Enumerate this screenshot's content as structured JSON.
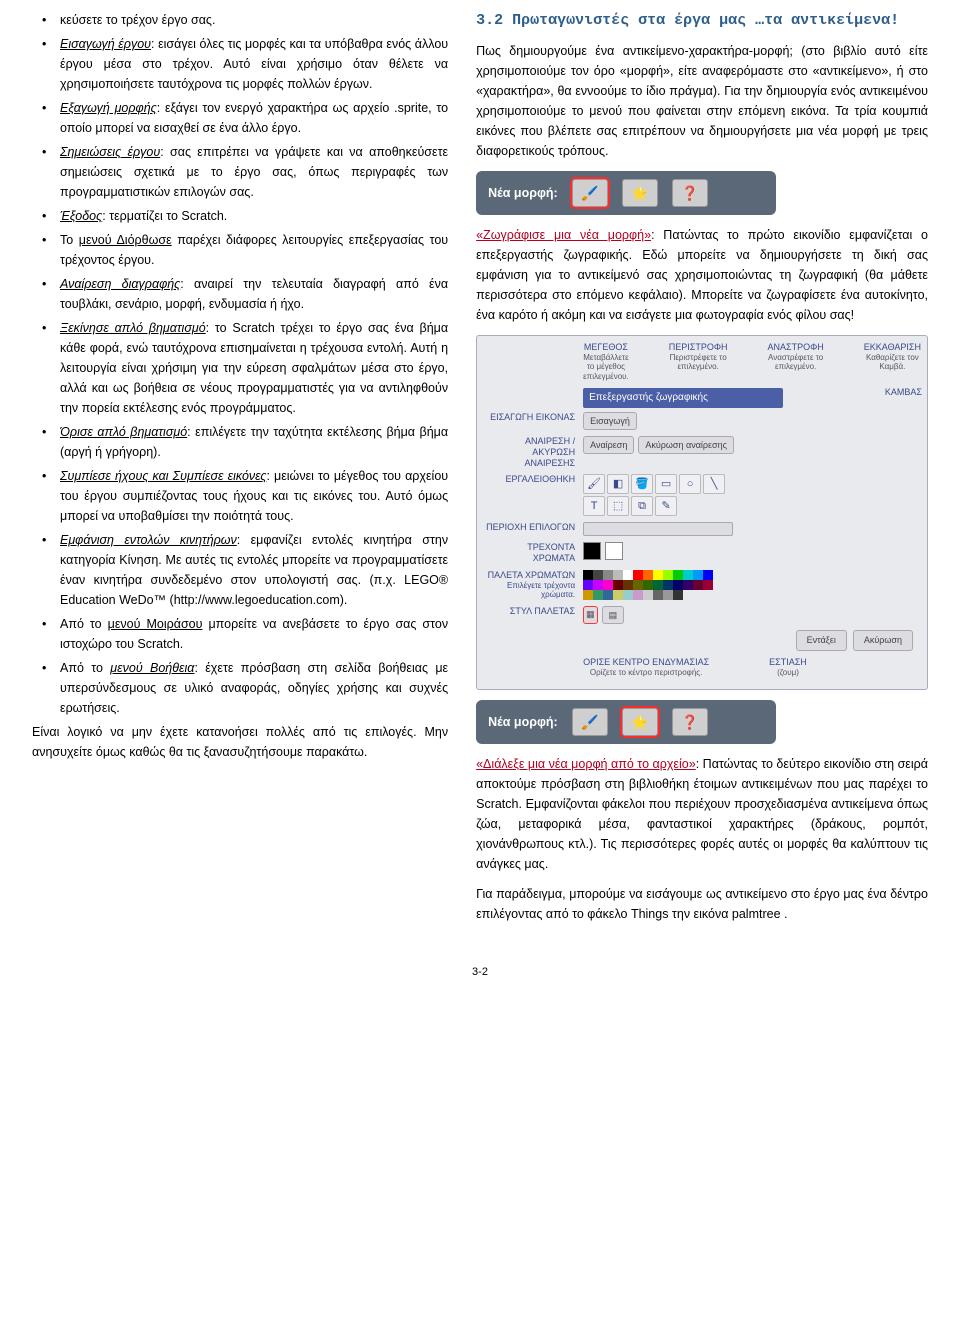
{
  "left": {
    "items": [
      {
        "pre": "",
        "term": "",
        "after": "κεύσετε το τρέχον έργο σας.",
        "term_class": ""
      },
      {
        "pre": "",
        "term": "Εισαγωγή έργου",
        "after": ": εισάγει όλες τις μορφές και τα υπόβαθρα ενός άλλου έργου μέσα στο τρέχον. Αυτό είναι χρήσιμο όταν θέλετε να χρησιμοποιήσετε ταυτόχρονα τις μορφές πολλών έργων.",
        "term_class": "u i"
      },
      {
        "pre": "",
        "term": "Εξαγωγή μορφής",
        "after": ": εξάγει τον ενεργό χαρακτήρα ως αρχείο .sprite, το οποίο μπορεί να εισαχθεί σε ένα άλλο έργο.",
        "term_class": "u i"
      },
      {
        "pre": "",
        "term": "Σημειώσεις έργου",
        "after": ": σας επιτρέπει να γράψετε και να αποθηκεύσετε σημειώσεις σχετικά με το έργο σας, όπως περιγραφές των προγραμματιστικών επιλογών σας.",
        "term_class": "u i"
      },
      {
        "pre": "",
        "term": "Έξοδος",
        "after": ": τερματίζει το Scratch.",
        "term_class": "u i"
      },
      {
        "pre": "Το ",
        "term": "μενού Διόρθωσε",
        "after": " παρέχει διάφορες λειτουργίες επεξεργασίας του τρέχοντος έργου.",
        "term_class": "u"
      },
      {
        "pre": "",
        "term": "Αναίρεση διαγραφής",
        "after": ": αναιρεί την τελευταία διαγραφή από ένα τουβλάκι, σενάριο, μορφή, ενδυμασία ή ήχο.",
        "term_class": "u i"
      },
      {
        "pre": "",
        "term": "Ξεκίνησε απλό βηματισμό",
        "after": ": το Scratch τρέχει το έργο σας ένα βήμα κάθε φορά, ενώ ταυτόχρονα επισημαίνεται η τρέχουσα εντολή. Αυτή η λειτουργία είναι χρήσιμη για την εύρεση σφαλμάτων μέσα στο έργο, αλλά και ως βοήθεια σε νέους προγραμματιστές για να αντιληφθούν την πορεία εκτέλεσης ενός προγράμματος.",
        "term_class": "u i"
      },
      {
        "pre": "",
        "term": "Όρισε απλό βηματισμό",
        "after": ": επιλέγετε την ταχύτητα εκτέλεσης βήμα βήμα (αργή ή γρήγορη).",
        "term_class": "u i"
      },
      {
        "pre": "",
        "term": "Συμπίεσε ήχους και Συμπίεσε εικόνες",
        "after": ": μειώνει το μέγεθος του αρχείου του έργου συμπιέζοντας τους ήχους και τις εικόνες του. Αυτό όμως μπορεί να υποβαθμίσει την ποιότητά τους.",
        "term_class": "u i"
      },
      {
        "pre": "",
        "term": "Εμφάνιση εντολών κινητήρων",
        "after": ": εμφανίζει εντολές κινητήρα στην κατηγορία Κίνηση. Με αυτές τις εντολές μπορείτε να προγραμματίσετε έναν κινητήρα συνδεδεμένο στον υπολογιστή σας. (π.χ. LEGO® Education WeDo™ (http://www.legoeducation.com).",
        "term_class": "u i"
      },
      {
        "pre": "Από το ",
        "term": "μενού Μοιράσου",
        "after": " μπορείτε να ανεβάσετε το έργο σας στον ιστοχώρο του Scratch.",
        "term_class": "u"
      },
      {
        "pre": "Από το ",
        "term": "μενού Βοήθεια",
        "after": ": έχετε πρόσβαση στη σελίδα βοήθειας με υπερσύνδεσμους σε υλικό αναφοράς, οδηγίες χρήσης και συχνές ερωτήσεις.",
        "term_class": "u i"
      }
    ],
    "after": "Είναι λογικό να μην έχετε κατανοήσει πολλές από τις επιλογές. Μην ανησυχείτε όμως καθώς θα τις ξανασυζητήσουμε παρακάτω."
  },
  "right": {
    "section_title": "3.2 Πρωταγωνιστές στα έργα μας …τα αντικείμενα!",
    "p1": "Πως δημιουργούμε ένα αντικείμενο-χαρακτήρα-μορφή; (στο βιβλίο αυτό είτε χρησιμοποιούμε τον όρο «μορφή», είτε αναφερόμαστε στο «αντικείμενο», ή στο «χαρακτήρα», θα εννοούμε το ίδιο πράγμα). Για την δημιουργία ενός αντικειμένου χρησιμοποιούμε το μενού που φαίνεται στην επόμενη εικόνα. Τα τρία κουμπιά εικόνες που βλέπετε σας επιτρέπουν να δημιουργήσετε μια νέα μορφή με τρεις διαφορετικούς τρόπους.",
    "nea_morfh_label": "Νέα μορφή:",
    "p2a": "«Ζωγράφισε μια νέα μορφή»",
    "p2b": ": Πατώντας το πρώτο εικονίδιο εμφανίζεται ο επεξεργαστής ζωγραφικής. Εδώ μπορείτε να δημιουργήσετε τη δική σας εμφάνιση για το αντικείμενό σας χρησιμοποιώντας τη ζωγραφική (θα μάθετε περισσότερα στο επόμενο κεφάλαιο). Μπορείτε να ζωγραφίσετε ένα αυτοκίνητο, ένα καρότο ή ακόμη και να εισάγετε μια φωτογραφία ενός φίλου σας!",
    "fig": {
      "top": [
        {
          "t": "ΜΕΓΕΘΟΣ",
          "s": "Μεταβάλλετε το μέγεθος επιλεγμένου."
        },
        {
          "t": "ΠΕΡΙΣΤΡΟΦΗ",
          "s": "Περιστρέφετε το επιλεγμένο."
        },
        {
          "t": "ΑΝΑΣΤΡΟΦΗ",
          "s": "Αναστρέφετε το επιλεγμένο."
        },
        {
          "t": "ΕΚΚΑΘΑΡΙΣΗ",
          "s": "Καθαρίζετε τον Καμβά."
        }
      ],
      "header_bar": "Επεξεργαστής ζωγραφικής",
      "rows": [
        {
          "label": "ΕΙΣΑΓΩΓΗ ΕΙΚΟΝΑΣ",
          "btns": [
            "Εισαγωγή"
          ]
        },
        {
          "label": "ΑΝΑΙΡΕΣΗ / ΑΚΥΡΩΣΗ ΑΝΑΙΡΕΣΗΣ",
          "btns": [
            "Αναίρεση",
            "Ακύρωση αναίρεσης"
          ]
        }
      ],
      "toolbox_label": "ΕΡΓΑΛΕΙΟΘΗΚΗ",
      "region_label": "ΠΕΡΙΟΧΗ ΕΠΙΛΟΓΩΝ",
      "current_label": "ΤΡΕΧΟΝΤΑ ΧΡΩΜΑΤΑ",
      "palette_label": "ΠΑΛΕΤΑ ΧΡΩΜΑΤΩΝ",
      "palette_sub": "Επιλέγετε τρέχοντα χρώματα.",
      "style_label": "ΣΤΥΛ ΠΑΛΕΤΑΣ",
      "kambas": "ΚΑΜΒΑΣ",
      "ok": "Εντάξει",
      "cancel": "Ακύρωση",
      "bottom": [
        {
          "t": "ΟΡΙΣΕ ΚΕΝΤΡΟ ΕΝΔΥΜΑΣΙΑΣ",
          "s": "Ορίζετε το κέντρο περιστροφής."
        },
        {
          "t": "ΕΣΤΙΑΣΗ",
          "s": "(ζουμ)"
        }
      ],
      "palette_colors": [
        "#000",
        "#444",
        "#888",
        "#bbb",
        "#fff",
        "#f00",
        "#f60",
        "#ff0",
        "#9f0",
        "#0c0",
        "#0cc",
        "#09f",
        "#00f",
        "#60f",
        "#c0f",
        "#f0c",
        "#600",
        "#630",
        "#660",
        "#360",
        "#063",
        "#036",
        "#006",
        "#306",
        "#603",
        "#903",
        "#c90",
        "#396",
        "#369",
        "#cc6",
        "#9cc",
        "#c9c",
        "#ccc",
        "#666",
        "#999",
        "#333"
      ]
    },
    "p3a": "«Διάλεξε μια νέα μορφή από το αρχείο»",
    "p3b": ": Πατώντας το δεύτερο εικονίδιο στη σειρά αποκτούμε πρόσβαση στη βιβλιοθήκη έτοιμων αντικειμένων που μας παρέχει το Scratch. Εμφανίζονται φάκελοι που περιέχουν προσχεδιασμένα αντικείμενα όπως ζώα, μεταφορικά μέσα, φανταστικοί χαρακτήρες (δράκους, ρομπότ, χιονάνθρωπους κτλ.). Τις περισσότερες φορές αυτές οι μορφές θα καλύπτουν τις ανάγκες μας.",
    "p4": "Για παράδειγμα, μπορούμε να εισάγουμε ως αντικείμενο στο έργο μας ένα δέντρο επιλέγοντας από το φάκελο Things την εικόνα palmtree .",
    "page_num": "3-2"
  }
}
